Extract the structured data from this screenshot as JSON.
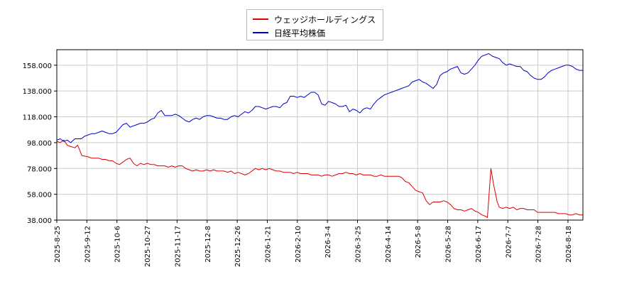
{
  "chart_data": {
    "type": "line",
    "title": "",
    "xlabel": "",
    "ylabel": "",
    "ylim": [
      38,
      170
    ],
    "yticks": [
      "38.000",
      "58.000",
      "78.000",
      "98.000",
      "118.000",
      "138.000",
      "158.000"
    ],
    "xticks": [
      "2025-8-25",
      "2025-9-12",
      "2025-10-6",
      "2025-10-27",
      "2025-11-17",
      "2025-12-8",
      "2025-12-26",
      "2026-1-21",
      "2026-2-10",
      "2026-3-4",
      "2026-3-25",
      "2026-4-14",
      "2026-5-8",
      "2026-5-28",
      "2026-6-17",
      "2026-7-7",
      "2026-7-28",
      "2026-8-18"
    ],
    "grid": true,
    "legend_position": "top-center",
    "series": [
      {
        "name": "ウェッジホールディングス",
        "color": "#dd0000",
        "points": [
          [
            0,
            99
          ],
          [
            0.5,
            98
          ],
          [
            1,
            100
          ],
          [
            1.5,
            96
          ],
          [
            2,
            95
          ],
          [
            2.6,
            94
          ],
          [
            3,
            96
          ],
          [
            3.3,
            92
          ],
          [
            3.6,
            88
          ],
          [
            4.5,
            87
          ],
          [
            5,
            86
          ],
          [
            5.5,
            86
          ],
          [
            6,
            86
          ],
          [
            6.5,
            85
          ],
          [
            7,
            85
          ],
          [
            7.5,
            84
          ],
          [
            8,
            84
          ],
          [
            8.5,
            82
          ],
          [
            9,
            81
          ],
          [
            9.5,
            83
          ],
          [
            10,
            85
          ],
          [
            10.5,
            86
          ],
          [
            11,
            82
          ],
          [
            11.5,
            80
          ],
          [
            12,
            82
          ],
          [
            12.5,
            81
          ],
          [
            13,
            82
          ],
          [
            13.5,
            81
          ],
          [
            14,
            81
          ],
          [
            14.5,
            80
          ],
          [
            15,
            80
          ],
          [
            15.5,
            80
          ],
          [
            16,
            79
          ],
          [
            16.5,
            80
          ],
          [
            17,
            79
          ],
          [
            17.5,
            80
          ],
          [
            18,
            80
          ],
          [
            18.5,
            78
          ],
          [
            19,
            77
          ],
          [
            19.5,
            76
          ],
          [
            20,
            77
          ],
          [
            20.5,
            76
          ],
          [
            21,
            76
          ],
          [
            21.5,
            77
          ],
          [
            22,
            76
          ],
          [
            22.5,
            77
          ],
          [
            23,
            76
          ],
          [
            23.5,
            76
          ],
          [
            24,
            76
          ],
          [
            24.5,
            75
          ],
          [
            25,
            76
          ],
          [
            25.5,
            74
          ],
          [
            26,
            75
          ],
          [
            26.5,
            74
          ],
          [
            27,
            73
          ],
          [
            27.5,
            74
          ],
          [
            28,
            76
          ],
          [
            28.5,
            78
          ],
          [
            29,
            77
          ],
          [
            29.5,
            78
          ],
          [
            30,
            77
          ],
          [
            30.5,
            78
          ],
          [
            31,
            77
          ],
          [
            31.5,
            76
          ],
          [
            32,
            76
          ],
          [
            32.5,
            75
          ],
          [
            33,
            75
          ],
          [
            33.5,
            75
          ],
          [
            34,
            74
          ],
          [
            34.5,
            75
          ],
          [
            35,
            74
          ],
          [
            35.5,
            74
          ],
          [
            36,
            74
          ],
          [
            36.5,
            73
          ],
          [
            37,
            73
          ],
          [
            37.5,
            73
          ],
          [
            38,
            72
          ],
          [
            38.5,
            73
          ],
          [
            39,
            73
          ],
          [
            39.5,
            72
          ],
          [
            40,
            73
          ],
          [
            40.5,
            74
          ],
          [
            41,
            74
          ],
          [
            41.5,
            75
          ],
          [
            42,
            74
          ],
          [
            42.5,
            74
          ],
          [
            43,
            73
          ],
          [
            43.5,
            74
          ],
          [
            44,
            73
          ],
          [
            44.5,
            73
          ],
          [
            45,
            73
          ],
          [
            45.5,
            72
          ],
          [
            46,
            72
          ],
          [
            46.5,
            73
          ],
          [
            47,
            72
          ],
          [
            47.5,
            72
          ],
          [
            48,
            72
          ],
          [
            48.5,
            72
          ],
          [
            49,
            72
          ],
          [
            49.5,
            71
          ],
          [
            50,
            68
          ],
          [
            50.5,
            67
          ],
          [
            51,
            64
          ],
          [
            51.5,
            61
          ],
          [
            52,
            60
          ],
          [
            52.5,
            59
          ],
          [
            53,
            53
          ],
          [
            53.5,
            50
          ],
          [
            54,
            52
          ],
          [
            54.5,
            52
          ],
          [
            55,
            52
          ],
          [
            55.5,
            53
          ],
          [
            56,
            52
          ],
          [
            56.5,
            50
          ],
          [
            57,
            47
          ],
          [
            57.5,
            46
          ],
          [
            58,
            46
          ],
          [
            58.5,
            45
          ],
          [
            59,
            46
          ],
          [
            59.5,
            47
          ],
          [
            60,
            45
          ],
          [
            60.5,
            44
          ],
          [
            61,
            42
          ],
          [
            61.5,
            41
          ],
          [
            61.8,
            40
          ],
          [
            62.3,
            78
          ],
          [
            62.7,
            65
          ],
          [
            63.2,
            52
          ],
          [
            63.5,
            48
          ],
          [
            64,
            47
          ],
          [
            64.5,
            48
          ],
          [
            65,
            47
          ],
          [
            65.5,
            48
          ],
          [
            66,
            46
          ],
          [
            66.5,
            47
          ],
          [
            67,
            47
          ],
          [
            67.5,
            46
          ],
          [
            68,
            46
          ],
          [
            68.5,
            46
          ],
          [
            69,
            44
          ],
          [
            69.5,
            44
          ],
          [
            70,
            44
          ],
          [
            70.5,
            44
          ],
          [
            71,
            44
          ],
          [
            71.5,
            44
          ],
          [
            72,
            43
          ],
          [
            72.5,
            43
          ],
          [
            73,
            43
          ],
          [
            73.5,
            42
          ],
          [
            74,
            42
          ],
          [
            74.5,
            43
          ],
          [
            75,
            42
          ],
          [
            75.5,
            42
          ]
        ]
      },
      {
        "name": "日経平均株価",
        "color": "#0000cc",
        "points": [
          [
            0,
            100
          ],
          [
            0.5,
            101
          ],
          [
            1,
            99
          ],
          [
            1.5,
            100
          ],
          [
            2,
            98
          ],
          [
            2.6,
            101
          ],
          [
            3,
            101
          ],
          [
            3.5,
            101
          ],
          [
            4,
            103
          ],
          [
            4.5,
            104
          ],
          [
            5,
            105
          ],
          [
            5.5,
            105
          ],
          [
            6,
            106
          ],
          [
            6.5,
            107
          ],
          [
            7,
            106
          ],
          [
            7.5,
            105
          ],
          [
            8,
            105
          ],
          [
            8.5,
            106
          ],
          [
            9,
            109
          ],
          [
            9.5,
            112
          ],
          [
            10,
            113
          ],
          [
            10.5,
            110
          ],
          [
            11,
            111
          ],
          [
            11.5,
            112
          ],
          [
            12,
            113
          ],
          [
            12.5,
            113
          ],
          [
            13,
            114
          ],
          [
            13.5,
            116
          ],
          [
            14,
            117
          ],
          [
            14.5,
            121
          ],
          [
            15,
            123
          ],
          [
            15.5,
            119
          ],
          [
            16,
            119
          ],
          [
            16.5,
            119
          ],
          [
            17,
            120
          ],
          [
            17.5,
            119
          ],
          [
            18,
            117
          ],
          [
            18.5,
            115
          ],
          [
            19,
            114
          ],
          [
            19.5,
            116
          ],
          [
            20,
            117
          ],
          [
            20.5,
            116
          ],
          [
            21,
            118
          ],
          [
            21.5,
            119
          ],
          [
            22,
            119
          ],
          [
            22.5,
            118
          ],
          [
            23,
            117
          ],
          [
            23.5,
            117
          ],
          [
            24,
            116
          ],
          [
            24.5,
            116
          ],
          [
            25,
            118
          ],
          [
            25.5,
            119
          ],
          [
            26,
            118
          ],
          [
            26.5,
            120
          ],
          [
            27,
            122
          ],
          [
            27.5,
            121
          ],
          [
            28,
            123
          ],
          [
            28.5,
            126
          ],
          [
            29,
            126
          ],
          [
            29.5,
            125
          ],
          [
            30,
            124
          ],
          [
            30.5,
            125
          ],
          [
            31,
            126
          ],
          [
            31.5,
            126
          ],
          [
            32,
            125
          ],
          [
            32.5,
            128
          ],
          [
            33,
            129
          ],
          [
            33.5,
            134
          ],
          [
            34,
            134
          ],
          [
            34.5,
            133
          ],
          [
            35,
            134
          ],
          [
            35.5,
            133
          ],
          [
            36,
            135
          ],
          [
            36.5,
            137
          ],
          [
            37,
            137
          ],
          [
            37.5,
            135
          ],
          [
            38,
            128
          ],
          [
            38.5,
            127
          ],
          [
            39,
            130
          ],
          [
            39.5,
            129
          ],
          [
            40,
            128
          ],
          [
            40.5,
            126
          ],
          [
            41,
            126
          ],
          [
            41.5,
            127
          ],
          [
            42,
            122
          ],
          [
            42.5,
            124
          ],
          [
            43,
            123
          ],
          [
            43.5,
            121
          ],
          [
            44,
            124
          ],
          [
            44.5,
            125
          ],
          [
            45,
            124
          ],
          [
            45.5,
            128
          ],
          [
            46,
            131
          ],
          [
            46.5,
            133
          ],
          [
            47,
            135
          ],
          [
            47.5,
            136
          ],
          [
            48,
            137
          ],
          [
            48.5,
            138
          ],
          [
            49,
            139
          ],
          [
            49.5,
            140
          ],
          [
            50,
            141
          ],
          [
            50.5,
            142
          ],
          [
            51,
            145
          ],
          [
            51.5,
            146
          ],
          [
            52,
            147
          ],
          [
            52.5,
            145
          ],
          [
            53,
            144
          ],
          [
            53.5,
            142
          ],
          [
            54,
            140
          ],
          [
            54.5,
            143
          ],
          [
            55,
            150
          ],
          [
            55.5,
            152
          ],
          [
            56,
            153
          ],
          [
            56.5,
            155
          ],
          [
            57,
            156
          ],
          [
            57.5,
            157
          ],
          [
            58,
            152
          ],
          [
            58.5,
            151
          ],
          [
            59,
            152
          ],
          [
            59.5,
            155
          ],
          [
            60,
            158
          ],
          [
            60.5,
            162
          ],
          [
            61,
            165
          ],
          [
            61.5,
            166
          ],
          [
            62,
            167
          ],
          [
            62.5,
            165
          ],
          [
            63,
            164
          ],
          [
            63.5,
            163
          ],
          [
            64,
            160
          ],
          [
            64.5,
            158
          ],
          [
            65,
            159
          ],
          [
            65.5,
            158
          ],
          [
            66,
            157
          ],
          [
            66.5,
            157
          ],
          [
            67,
            154
          ],
          [
            67.5,
            153
          ],
          [
            68,
            150
          ],
          [
            68.5,
            148
          ],
          [
            69,
            147
          ],
          [
            69.5,
            147
          ],
          [
            70,
            149
          ],
          [
            70.5,
            152
          ],
          [
            71,
            154
          ],
          [
            71.5,
            155
          ],
          [
            72,
            156
          ],
          [
            72.5,
            157
          ],
          [
            73,
            158
          ],
          [
            73.5,
            158
          ],
          [
            74,
            157
          ],
          [
            74.5,
            155
          ],
          [
            75,
            154
          ],
          [
            75.5,
            154
          ]
        ]
      }
    ]
  }
}
